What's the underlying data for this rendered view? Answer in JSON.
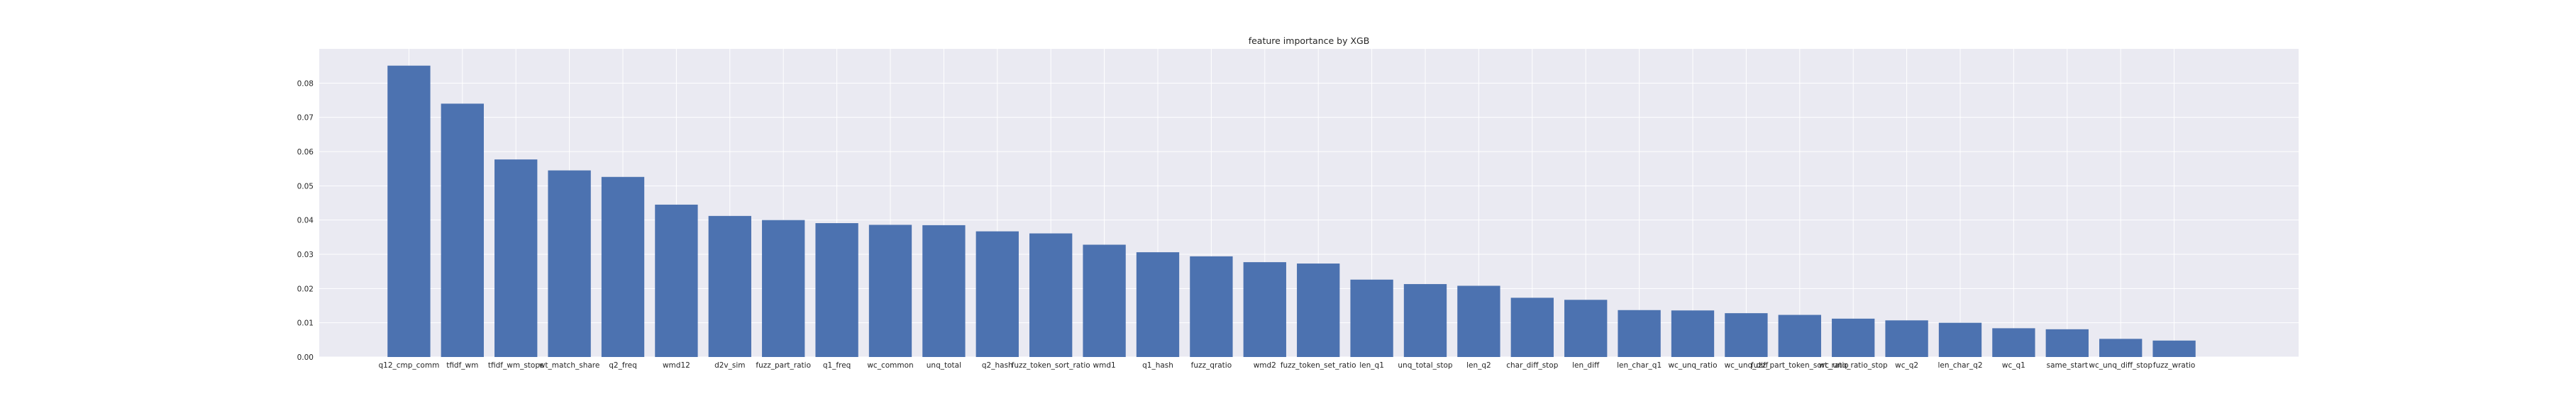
{
  "chart_data": {
    "type": "bar",
    "title": "feature importance by XGB",
    "xlabel": "",
    "ylabel": "",
    "ylim": [
      0,
      0.09
    ],
    "yticks": [
      0.0,
      0.01,
      0.02,
      0.03,
      0.04,
      0.05,
      0.06,
      0.07,
      0.08
    ],
    "ytick_labels": [
      "0.00",
      "0.01",
      "0.02",
      "0.03",
      "0.04",
      "0.05",
      "0.06",
      "0.07",
      "0.08"
    ],
    "grid": true,
    "legend": "none",
    "bar_color": "#4c72b0",
    "background_color": "#eaeaf2",
    "categories": [
      "q12_cmp_comm",
      "tfidf_wm",
      "tfidf_wm_stops",
      "wt_match_share",
      "q2_freq",
      "wmd12",
      "d2v_sim",
      "fuzz_part_ratio",
      "q1_freq",
      "wc_common",
      "unq_total",
      "q2_hash",
      "fuzz_token_sort_ratio",
      "wmd1",
      "q1_hash",
      "fuzz_qratio",
      "wmd2",
      "fuzz_token_set_ratio",
      "len_q1",
      "unq_total_stop",
      "len_q2",
      "char_diff_stop",
      "len_diff",
      "len_char_q1",
      "wc_unq_ratio",
      "wc_unq_diff",
      "fuzz_part_token_sort_ratio",
      "wc_unq_ratio_stop",
      "wc_q2",
      "len_char_q2",
      "wc_q1",
      "same_start",
      "wc_unq_diff_stop",
      "fuzz_wratio"
    ],
    "values": [
      0.0851,
      0.074,
      0.0577,
      0.0545,
      0.0526,
      0.0445,
      0.0412,
      0.04,
      0.0391,
      0.0386,
      0.0385,
      0.0367,
      0.0361,
      0.0328,
      0.0306,
      0.0294,
      0.0277,
      0.0273,
      0.0226,
      0.0213,
      0.0208,
      0.0173,
      0.0167,
      0.0137,
      0.0136,
      0.0128,
      0.0123,
      0.0112,
      0.0107,
      0.01,
      0.0084,
      0.0081,
      0.0053,
      0.0048
    ]
  }
}
